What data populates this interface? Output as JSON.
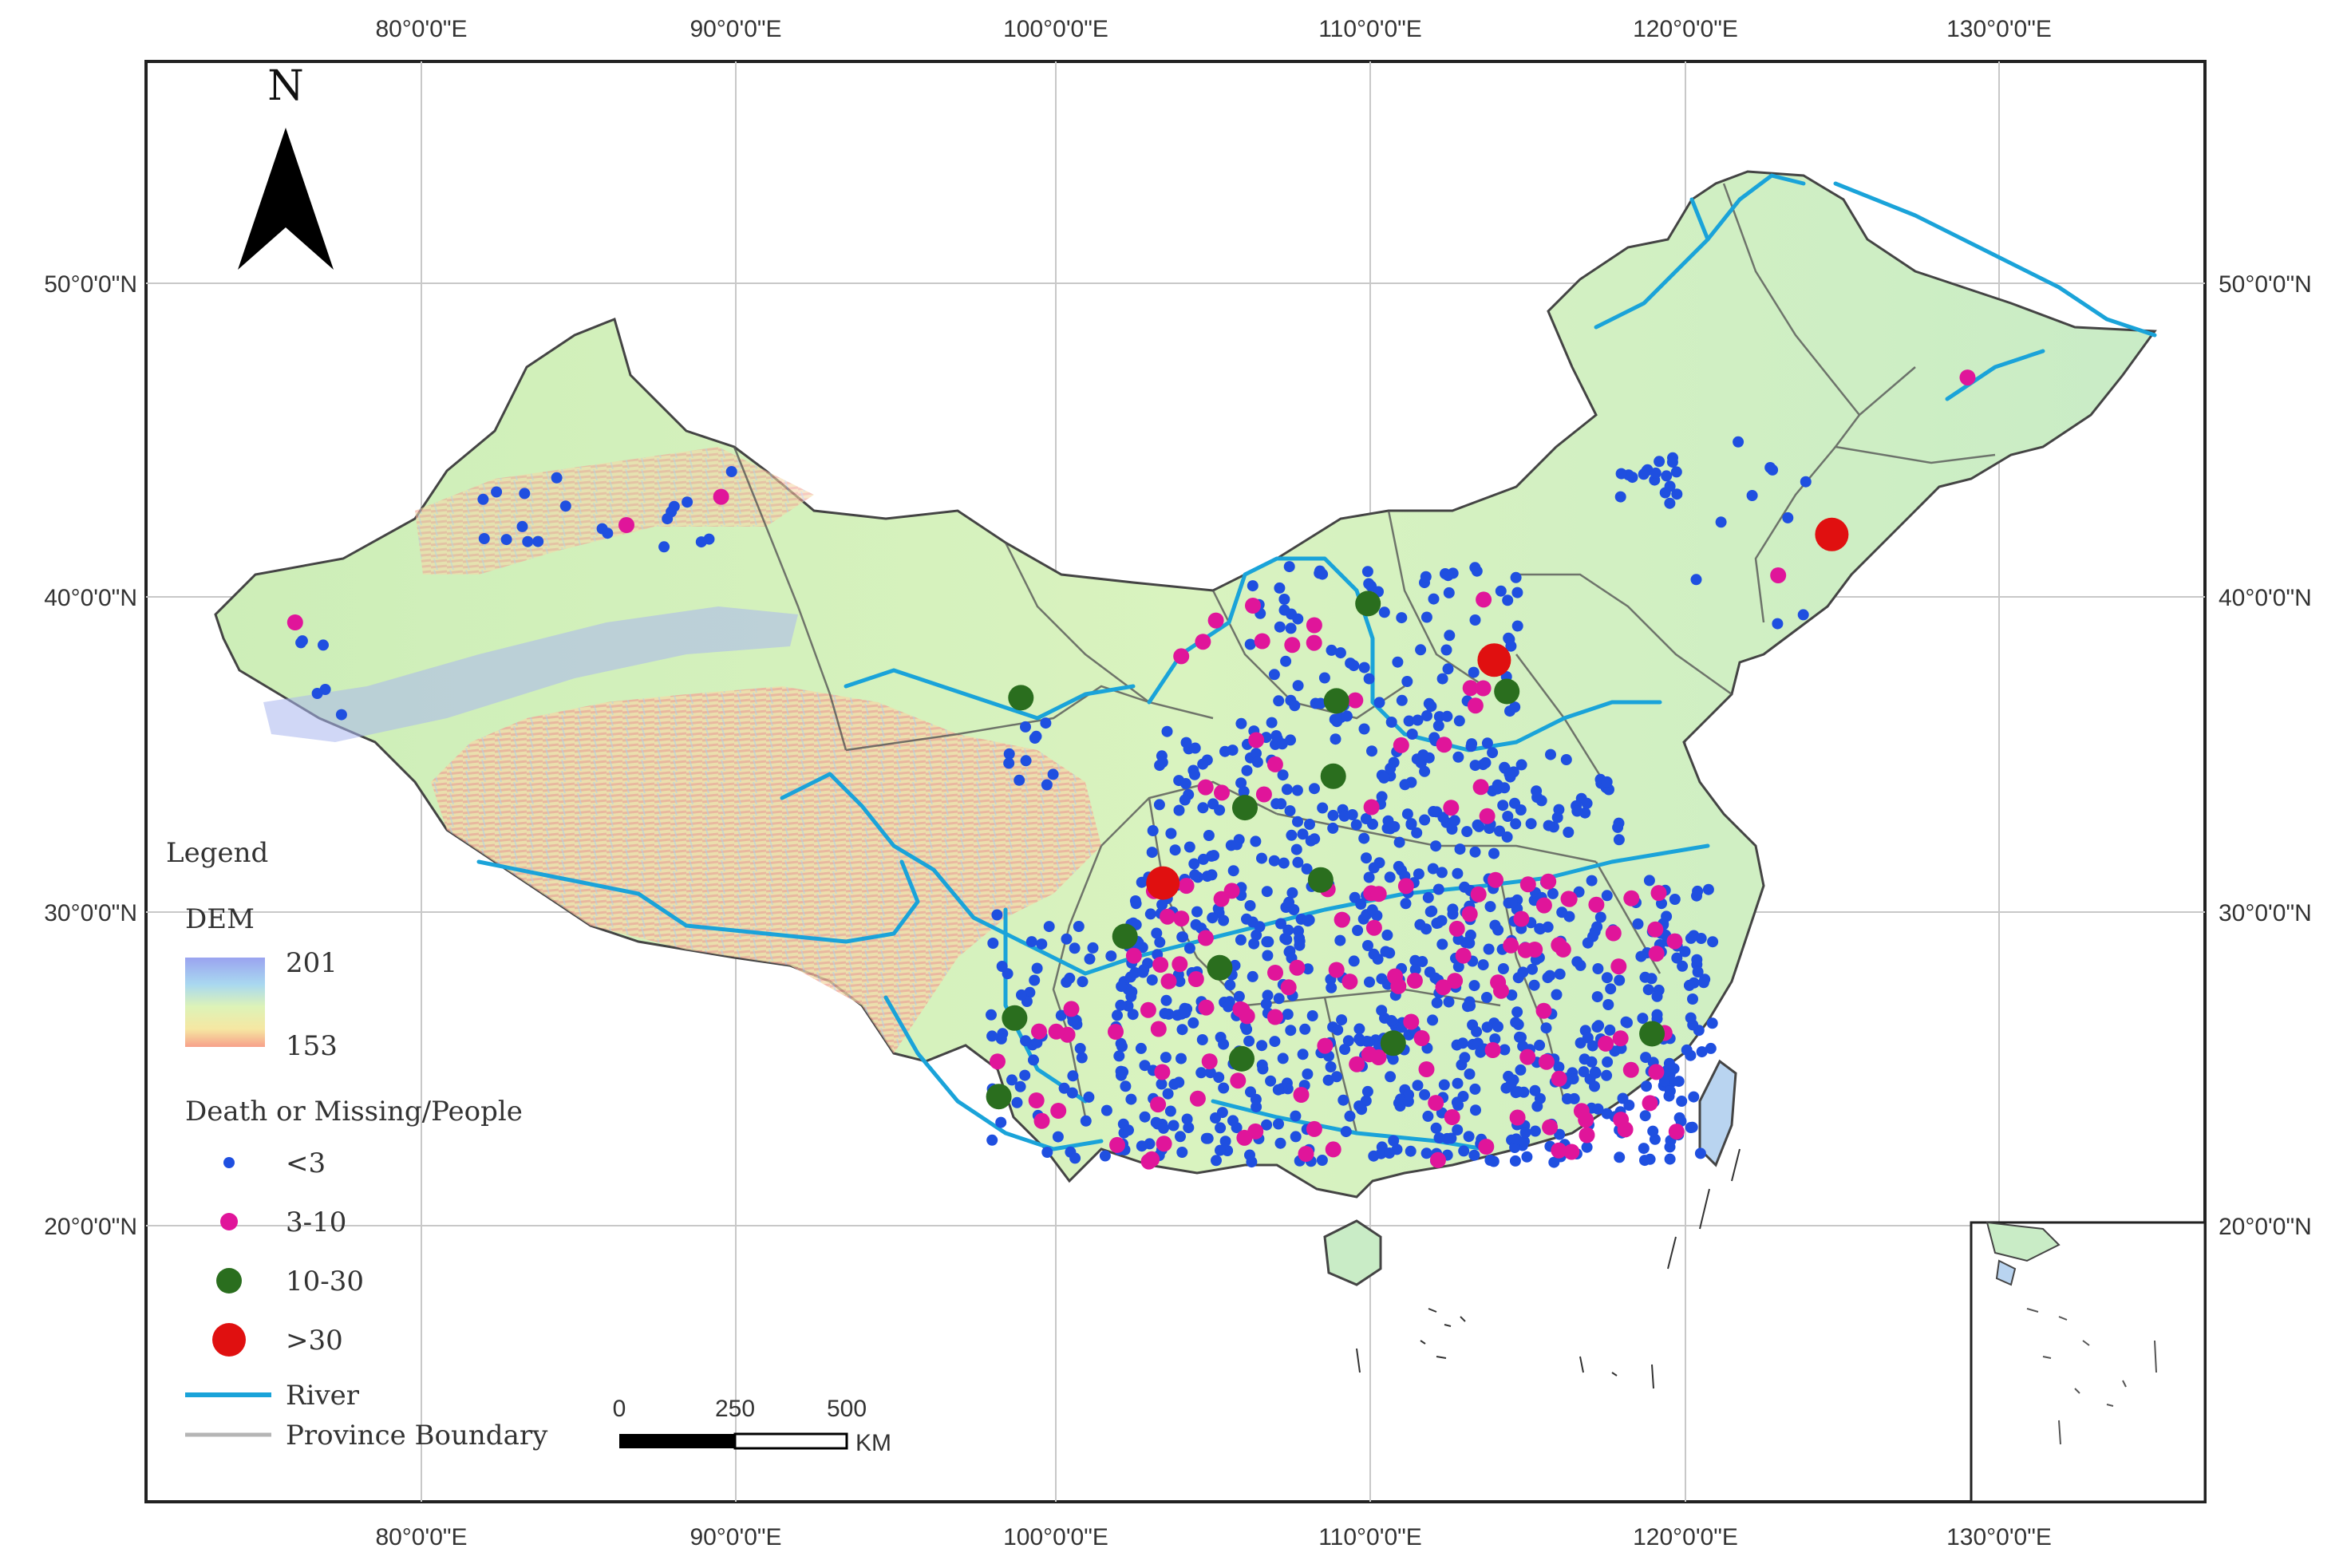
{
  "map": {
    "north_label": "N",
    "lon_ticks": [
      "80°0'0\"E",
      "90°0'0\"E",
      "100°0'0\"E",
      "110°0'0\"E",
      "120°0'0\"E",
      "130°0'0\"E"
    ],
    "lat_ticks": [
      "50°0'0\"N",
      "40°0'0\"N",
      "30°0'0\"N",
      "20°0'0\"N"
    ]
  },
  "legend": {
    "title": "Legend",
    "dem_title": "DEM",
    "dem_high": "201",
    "dem_low": "153",
    "death_title": "Death or Missing/People",
    "classes": [
      {
        "label": "<3",
        "color": "#1f4fe0"
      },
      {
        "label": "3-10",
        "color": "#e0159a"
      },
      {
        "label": "10-30",
        "color": "#2a6e1e"
      },
      {
        "label": ">30",
        "color": "#e01010"
      }
    ],
    "river_label": "River",
    "river_color": "#1aa3d9",
    "boundary_label": "Province Boundary",
    "boundary_color": "#b5b5b5"
  },
  "scalebar": {
    "labels": [
      "0",
      "250",
      "500"
    ],
    "unit": "KM"
  },
  "events_gt30": [
    {
      "lon": 103.5,
      "lat": 30.9
    },
    {
      "lon": 114.0,
      "lat": 38.0
    },
    {
      "lon": 124.7,
      "lat": 42.0
    }
  ],
  "events_10_30": [
    {
      "lon": 99.0,
      "lat": 36.8
    },
    {
      "lon": 110.0,
      "lat": 39.8
    },
    {
      "lon": 114.4,
      "lat": 37.0
    },
    {
      "lon": 109.0,
      "lat": 36.7
    },
    {
      "lon": 108.9,
      "lat": 34.3
    },
    {
      "lon": 106.1,
      "lat": 33.3
    },
    {
      "lon": 108.5,
      "lat": 31.0
    },
    {
      "lon": 102.3,
      "lat": 29.2
    },
    {
      "lon": 105.3,
      "lat": 28.2
    },
    {
      "lon": 98.8,
      "lat": 26.6
    },
    {
      "lon": 98.3,
      "lat": 24.1
    },
    {
      "lon": 106.0,
      "lat": 25.3
    },
    {
      "lon": 110.8,
      "lat": 25.8
    },
    {
      "lon": 119.0,
      "lat": 26.1
    }
  ]
}
